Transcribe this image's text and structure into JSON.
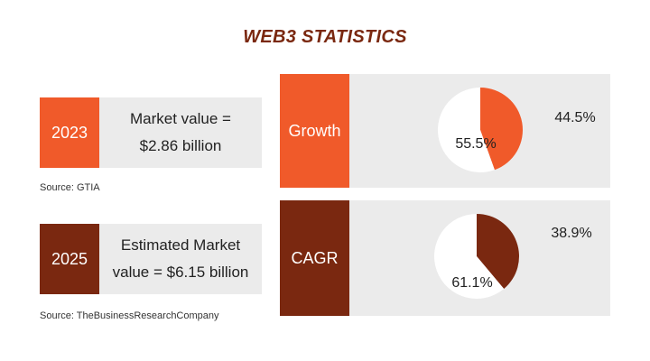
{
  "title": "WEB3 STATISTICS",
  "colors": {
    "orange": "#f05a2a",
    "brown": "#7a2810",
    "panel": "#ebebeb",
    "title": "#7a2810"
  },
  "stats": [
    {
      "year": "2023",
      "line1": "Market value =",
      "line2": "$2.86 billion",
      "source": "Source: GTIA"
    },
    {
      "year": "2025",
      "line1": "Estimated Market",
      "line2": "value = $6.15 billion",
      "source": "Source: TheBusinessResearchCompany"
    }
  ],
  "chart_data": [
    {
      "type": "pie",
      "title": "Growth",
      "slices": [
        {
          "label": "44.5%",
          "value": 44.5,
          "color": "#f05a2a"
        },
        {
          "label": "55.5%",
          "value": 55.5,
          "color": "#ffffff"
        }
      ]
    },
    {
      "type": "pie",
      "title": "CAGR",
      "slices": [
        {
          "label": "38.9%",
          "value": 38.9,
          "color": "#7a2810"
        },
        {
          "label": "61.1%",
          "value": 61.1,
          "color": "#ffffff"
        }
      ]
    }
  ]
}
